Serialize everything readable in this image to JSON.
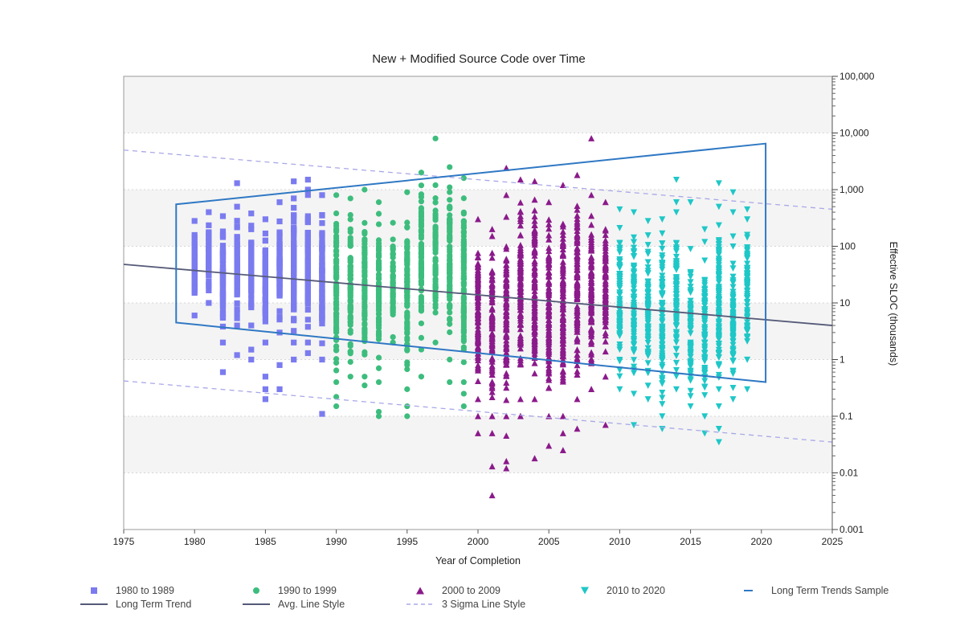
{
  "chart_data": {
    "type": "scatter",
    "title": "New + Modified Source Code over Time",
    "xlabel": "Year of Completion",
    "ylabel": "Effective SLOC (thousands)",
    "xlim": [
      1975,
      2025
    ],
    "ylim": [
      0.001,
      100000
    ],
    "yscale": "log",
    "y_axis_side": "right",
    "grid": "horizontal banded",
    "x_ticks": [
      1975,
      1980,
      1985,
      1990,
      1995,
      2000,
      2005,
      2010,
      2015,
      2020,
      2025
    ],
    "x_tick_labels": [
      "1975",
      "1980",
      "1985",
      "1990",
      "1995",
      "2000",
      "2005",
      "2010",
      "2015",
      "2020",
      "2025"
    ],
    "y_ticks": [
      0.001,
      0.01,
      0.1,
      1,
      10,
      100,
      1000,
      10000,
      100000
    ],
    "y_tick_labels": [
      "0.001",
      "0.01",
      "0.1",
      "1",
      "10",
      "100",
      "1,000",
      "10,000",
      "100,000"
    ],
    "series": [
      {
        "name": "1980 to 1989",
        "marker": "square",
        "color": "#7b7bf0",
        "x_range": [
          1980,
          1989
        ],
        "columns": [
          {
            "x": 1980,
            "ymin": 6,
            "ymax": 280,
            "extra": []
          },
          {
            "x": 1981,
            "ymin": 10,
            "ymax": 400,
            "extra": []
          },
          {
            "x": 1982,
            "ymin": 2,
            "ymax": 340,
            "extra": [
              0.6
            ]
          },
          {
            "x": 1983,
            "ymin": 4,
            "ymax": 500,
            "extra": [
              1.2,
              1300
            ]
          },
          {
            "x": 1984,
            "ymin": 4,
            "ymax": 380,
            "extra": [
              1.5,
              1.0
            ]
          },
          {
            "x": 1985,
            "ymin": 2,
            "ymax": 300,
            "extra": [
              0.5,
              0.3,
              0.2
            ]
          },
          {
            "x": 1986,
            "ymin": 3,
            "ymax": 600,
            "extra": [
              0.3,
              0.8
            ]
          },
          {
            "x": 1987,
            "ymin": 2,
            "ymax": 700,
            "extra": [
              1400,
              1.0
            ]
          },
          {
            "x": 1988,
            "ymin": 2,
            "ymax": 1000,
            "extra": [
              1500,
              1.3
            ]
          },
          {
            "x": 1989,
            "ymin": 1,
            "ymax": 800,
            "extra": [
              0.11
            ]
          }
        ]
      },
      {
        "name": "1990 to 1999",
        "marker": "circle",
        "color": "#3dbd7d",
        "x_range": [
          1990,
          1999
        ],
        "columns": [
          {
            "x": 1990,
            "ymin": 0.4,
            "ymax": 800,
            "extra": [
              0.15,
              0.22
            ]
          },
          {
            "x": 1991,
            "ymin": 0.5,
            "ymax": 700,
            "extra": []
          },
          {
            "x": 1992,
            "ymin": 0.5,
            "ymax": 1000,
            "extra": [
              0.35
            ]
          },
          {
            "x": 1993,
            "ymin": 0.4,
            "ymax": 600,
            "extra": [
              0.1,
              0.12
            ]
          },
          {
            "x": 1994,
            "ymin": 2,
            "ymax": 260,
            "extra": [
              2.5
            ]
          },
          {
            "x": 1995,
            "ymin": 0.3,
            "ymax": 900,
            "extra": [
              0.1,
              0.15
            ]
          },
          {
            "x": 1996,
            "ymin": 1.5,
            "ymax": 2000,
            "extra": [
              0.5
            ]
          },
          {
            "x": 1997,
            "ymin": 2,
            "ymax": 1200,
            "extra": [
              8000
            ]
          },
          {
            "x": 1998,
            "ymin": 1,
            "ymax": 2500,
            "extra": [
              0.4
            ]
          },
          {
            "x": 1999,
            "ymin": 0.4,
            "ymax": 1600,
            "extra": [
              0.15,
              0.25
            ]
          }
        ]
      },
      {
        "name": "2000 to 2009",
        "marker": "triangle-up",
        "color": "#8b1a8b",
        "x_range": [
          2000,
          2009
        ],
        "columns": [
          {
            "x": 2000,
            "ymin": 0.2,
            "ymax": 300,
            "extra": [
              0.05,
              0.1
            ]
          },
          {
            "x": 2001,
            "ymin": 0.1,
            "ymax": 200,
            "extra": [
              0.004,
              0.013,
              0.05
            ]
          },
          {
            "x": 2002,
            "ymin": 0.1,
            "ymax": 330,
            "extra": [
              0.012,
              0.016,
              0.045,
              2400,
              800
            ]
          },
          {
            "x": 2003,
            "ymin": 0.2,
            "ymax": 1500,
            "extra": [
              0.1
            ]
          },
          {
            "x": 2004,
            "ymin": 0.2,
            "ymax": 1400,
            "extra": [
              0.018
            ]
          },
          {
            "x": 2005,
            "ymin": 0.1,
            "ymax": 600,
            "extra": [
              0.03
            ]
          },
          {
            "x": 2006,
            "ymin": 0.1,
            "ymax": 1200,
            "extra": [
              0.025,
              0.05
            ]
          },
          {
            "x": 2007,
            "ymin": 0.2,
            "ymax": 1800,
            "extra": [
              0.06
            ]
          },
          {
            "x": 2008,
            "ymin": 0.3,
            "ymax": 800,
            "extra": [
              8000
            ]
          },
          {
            "x": 2009,
            "ymin": 0.5,
            "ymax": 600,
            "extra": [
              0.07
            ]
          }
        ]
      },
      {
        "name": "2010 to 2020",
        "marker": "triangle-down",
        "color": "#1fc7c7",
        "x_range": [
          2010,
          2020
        ],
        "columns": [
          {
            "x": 2010,
            "ymin": 0.3,
            "ymax": 450,
            "extra": []
          },
          {
            "x": 2011,
            "ymin": 0.25,
            "ymax": 400,
            "extra": [
              0.07
            ]
          },
          {
            "x": 2012,
            "ymin": 0.2,
            "ymax": 280,
            "extra": []
          },
          {
            "x": 2013,
            "ymin": 0.1,
            "ymax": 300,
            "extra": [
              0.06
            ]
          },
          {
            "x": 2014,
            "ymin": 0.3,
            "ymax": 400,
            "extra": [
              1500,
              600
            ]
          },
          {
            "x": 2015,
            "ymin": 0.15,
            "ymax": 90,
            "extra": [
              600
            ]
          },
          {
            "x": 2016,
            "ymin": 0.1,
            "ymax": 120,
            "extra": [
              0.05,
              200
            ]
          },
          {
            "x": 2017,
            "ymin": 0.15,
            "ymax": 500,
            "extra": [
              1300,
              0.06,
              0.035
            ]
          },
          {
            "x": 2018,
            "ymin": 0.2,
            "ymax": 150,
            "extra": [
              900,
              400
            ]
          },
          {
            "x": 2019,
            "ymin": 1,
            "ymax": 300,
            "extra": [
              0.3,
              2.5,
              450
            ]
          }
        ]
      }
    ],
    "lines": [
      {
        "name": "Long Term Trend",
        "style": "solid",
        "color": "#555a78",
        "points": [
          [
            1975,
            48
          ],
          [
            2025,
            4
          ]
        ]
      },
      {
        "name": "3 Sigma Line Style",
        "style": "dashed",
        "color": "#a8a8e8",
        "points": [
          [
            1975,
            5000
          ],
          [
            2025,
            450
          ]
        ]
      },
      {
        "name": "3 Sigma Line Style",
        "style": "dashed",
        "color": "#a8a8e8",
        "points": [
          [
            1975,
            0.42
          ],
          [
            2025,
            0.035
          ]
        ]
      },
      {
        "name": "Long Term Trends Sample",
        "style": "polygon",
        "color": "#2f78c4",
        "points": [
          [
            1978.7,
            550
          ],
          [
            2020.3,
            6500
          ],
          [
            2020.3,
            0.4
          ],
          [
            1978.7,
            4.5
          ]
        ]
      }
    ]
  },
  "legend": {
    "items": [
      {
        "label": "1980 to 1989",
        "symbol": "square",
        "color": "#7b7bf0"
      },
      {
        "label": "1990 to 1999",
        "symbol": "circle",
        "color": "#3dbd7d"
      },
      {
        "label": "2000 to 2009",
        "symbol": "triangle-up",
        "color": "#8b1a8b"
      },
      {
        "label": "2010 to 2020",
        "symbol": "triangle-down",
        "color": "#1fc7c7"
      },
      {
        "label": "Long Term Trends Sample",
        "symbol": "line",
        "color": "#2f78c4"
      },
      {
        "label": "Long Term Trend",
        "symbol": "line",
        "color": "#555a78"
      },
      {
        "label": "Avg. Line Style",
        "symbol": "line",
        "color": "#555a78"
      },
      {
        "label": "3 Sigma Line Style",
        "symbol": "dashed",
        "color": "#a8a8e8"
      }
    ]
  }
}
